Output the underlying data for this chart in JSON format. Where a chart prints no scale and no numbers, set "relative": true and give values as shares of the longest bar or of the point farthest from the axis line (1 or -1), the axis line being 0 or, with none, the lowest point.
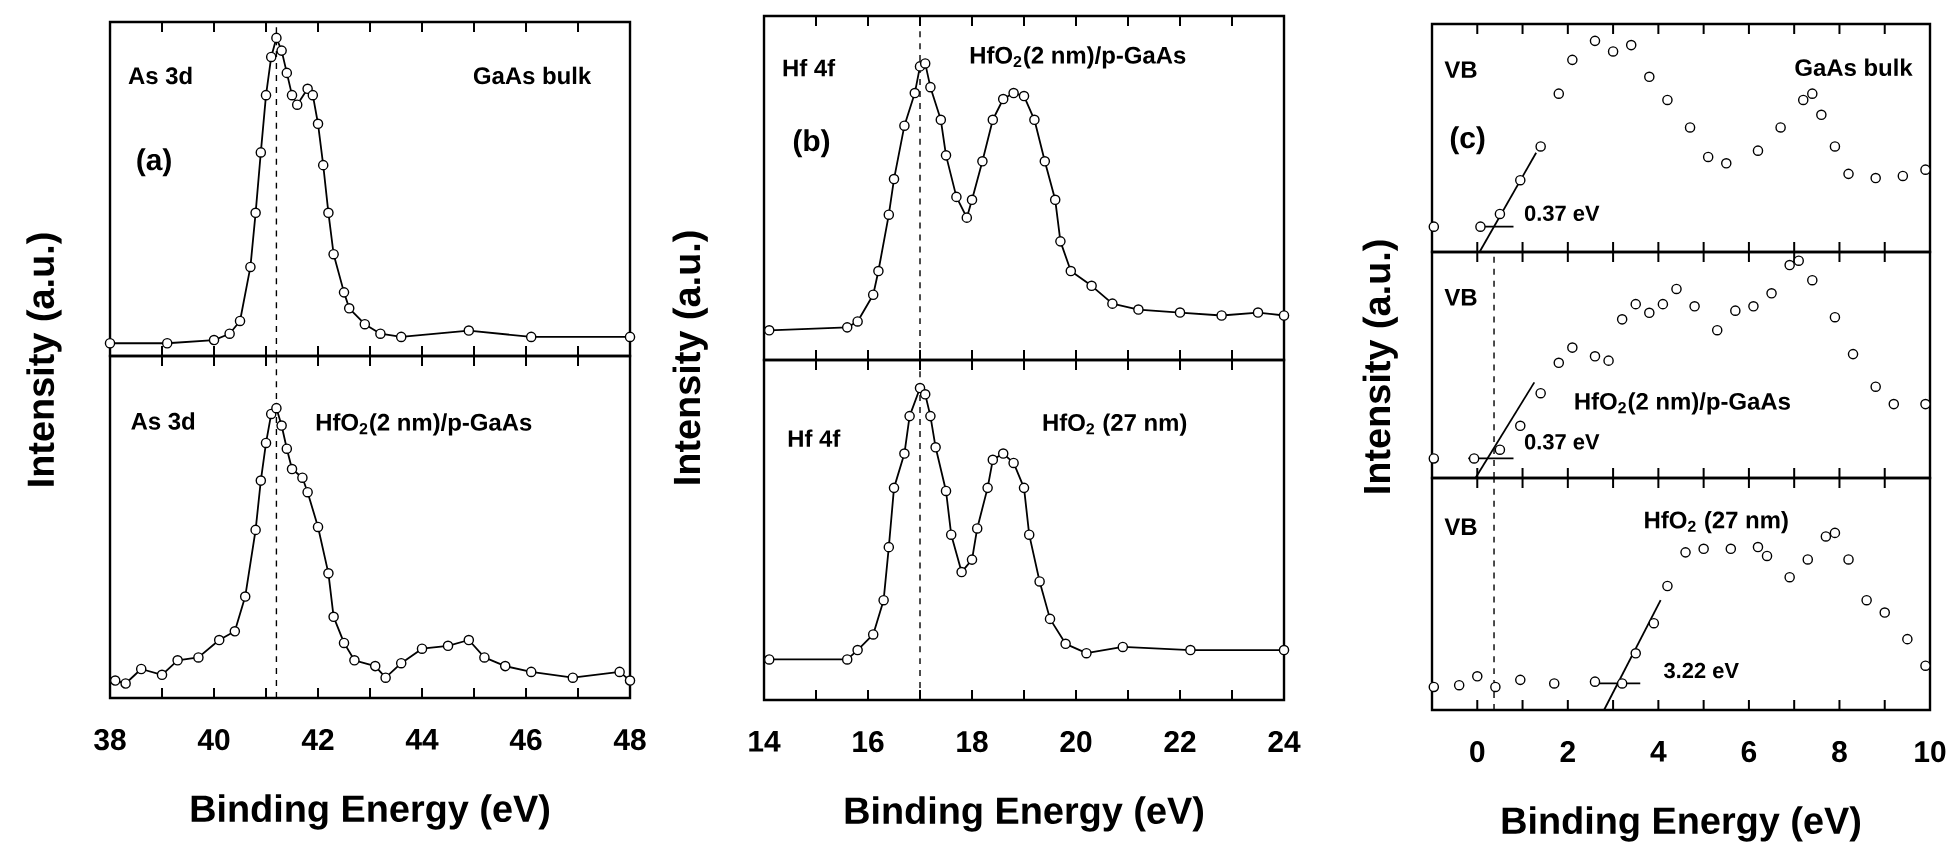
{
  "chart_data": [
    {
      "type": "line",
      "relative": true,
      "marker": "circle",
      "xlim": [
        38,
        48
      ],
      "xticks": [
        38,
        40,
        42,
        44,
        46,
        48
      ],
      "tick_labels": false,
      "ylabel": "Intensity (a.u.)",
      "annotations": [
        "As 3d",
        "GaAs bulk",
        "(a)"
      ],
      "ref_lines": [
        {
          "axis": "x",
          "value": 41.2,
          "line_style": "dashed",
          "color": "#000000"
        }
      ],
      "series": [
        {
          "type": "line",
          "color": "#000000",
          "x": [
            38.0,
            39.1,
            40.0,
            40.3,
            40.5,
            40.7,
            40.8,
            40.9,
            41.0,
            41.1,
            41.2,
            41.3,
            41.4,
            41.5,
            41.6,
            41.8,
            41.9,
            42.0,
            42.1,
            42.2,
            42.3,
            42.5,
            42.6,
            42.9,
            43.2,
            43.6,
            44.9,
            46.1,
            48.0
          ],
          "values": [
            0.04,
            0.04,
            0.05,
            0.07,
            0.11,
            0.28,
            0.45,
            0.64,
            0.82,
            0.94,
            1.0,
            0.96,
            0.89,
            0.82,
            0.79,
            0.84,
            0.82,
            0.73,
            0.6,
            0.45,
            0.32,
            0.2,
            0.15,
            0.1,
            0.07,
            0.06,
            0.08,
            0.06,
            0.06
          ]
        }
      ]
    },
    {
      "type": "line",
      "relative": true,
      "marker": "circle",
      "xlim": [
        38,
        48
      ],
      "xticks": [
        38,
        40,
        42,
        44,
        46,
        48
      ],
      "tick_labels": "x",
      "xlabel": "Binding Energy (eV)",
      "annotations": [
        "As 3d",
        "HfO$_{2}$(2 nm)/p-GaAs"
      ],
      "ref_lines": [
        {
          "axis": "x",
          "value": 41.2,
          "line_style": "dashed",
          "color": "#000000"
        }
      ],
      "series": [
        {
          "type": "line",
          "color": "#000000",
          "x": [
            38.1,
            38.3,
            38.6,
            39.0,
            39.3,
            39.7,
            40.1,
            40.4,
            40.6,
            40.8,
            40.9,
            41.0,
            41.1,
            41.2,
            41.3,
            41.4,
            41.5,
            41.7,
            41.8,
            42.0,
            42.2,
            42.3,
            42.5,
            42.7,
            43.1,
            43.3,
            43.6,
            44.0,
            44.5,
            44.9,
            45.2,
            45.6,
            46.1,
            46.9,
            47.8,
            48.0
          ],
          "values": [
            0.06,
            0.05,
            0.1,
            0.08,
            0.13,
            0.14,
            0.2,
            0.23,
            0.35,
            0.58,
            0.75,
            0.88,
            0.98,
            1.0,
            0.94,
            0.86,
            0.79,
            0.76,
            0.71,
            0.59,
            0.43,
            0.28,
            0.19,
            0.13,
            0.11,
            0.07,
            0.12,
            0.17,
            0.18,
            0.2,
            0.14,
            0.11,
            0.09,
            0.07,
            0.09,
            0.06
          ]
        }
      ]
    },
    {
      "type": "line",
      "relative": true,
      "marker": "circle",
      "xlim": [
        14,
        24
      ],
      "xticks": [
        14,
        16,
        18,
        20,
        22,
        24
      ],
      "tick_labels": false,
      "ylabel": "Intensity (a.u.)",
      "annotations": [
        "Hf 4f",
        "HfO$_{2}$(2 nm)/p-GaAs",
        "(b)"
      ],
      "ref_lines": [
        {
          "axis": "x",
          "value": 17.0,
          "line_style": "dashed",
          "color": "#000000"
        }
      ],
      "series": [
        {
          "type": "line",
          "color": "#000000",
          "x": [
            14.1,
            15.6,
            15.8,
            16.1,
            16.2,
            16.4,
            16.5,
            16.7,
            16.9,
            17.0,
            17.1,
            17.2,
            17.4,
            17.5,
            17.7,
            17.9,
            18.0,
            18.2,
            18.4,
            18.6,
            18.8,
            19.0,
            19.2,
            19.4,
            19.6,
            19.7,
            19.9,
            20.3,
            20.7,
            21.2,
            22.0,
            22.8,
            23.5,
            24.0
          ],
          "values": [
            0.1,
            0.11,
            0.13,
            0.22,
            0.3,
            0.49,
            0.61,
            0.79,
            0.9,
            0.99,
            1.0,
            0.92,
            0.81,
            0.69,
            0.55,
            0.48,
            0.54,
            0.67,
            0.81,
            0.88,
            0.9,
            0.89,
            0.81,
            0.67,
            0.54,
            0.4,
            0.3,
            0.25,
            0.19,
            0.17,
            0.16,
            0.15,
            0.16,
            0.15
          ]
        }
      ]
    },
    {
      "type": "line",
      "relative": true,
      "marker": "circle",
      "xlim": [
        14,
        24
      ],
      "xticks": [
        14,
        16,
        18,
        20,
        22,
        24
      ],
      "tick_labels": "x",
      "xlabel": "Binding Energy (eV)",
      "annotations": [
        "Hf 4f",
        "HfO$_{2}$ (27 nm)"
      ],
      "ref_lines": [
        {
          "axis": "x",
          "value": 17.0,
          "line_style": "dashed",
          "color": "#000000"
        }
      ],
      "series": [
        {
          "type": "line",
          "color": "#000000",
          "x": [
            14.1,
            15.6,
            15.8,
            16.1,
            16.3,
            16.4,
            16.5,
            16.7,
            16.8,
            17.0,
            17.1,
            17.2,
            17.3,
            17.5,
            17.6,
            17.8,
            18.0,
            18.1,
            18.3,
            18.4,
            18.6,
            18.8,
            19.0,
            19.1,
            19.3,
            19.5,
            19.8,
            20.2,
            20.9,
            22.2,
            24.0
          ],
          "values": [
            0.13,
            0.13,
            0.16,
            0.21,
            0.32,
            0.49,
            0.68,
            0.79,
            0.91,
            1.0,
            0.98,
            0.91,
            0.81,
            0.67,
            0.53,
            0.41,
            0.45,
            0.55,
            0.68,
            0.77,
            0.79,
            0.76,
            0.68,
            0.53,
            0.38,
            0.26,
            0.18,
            0.15,
            0.17,
            0.16,
            0.16
          ]
        }
      ]
    },
    {
      "type": "line",
      "relative": true,
      "marker": "circle",
      "xlim": [
        -1,
        10
      ],
      "xticks": [
        0,
        2,
        4,
        6,
        8,
        10
      ],
      "tick_labels": false,
      "ylabel": "Intensity (a.u.)",
      "annotations": [
        "VB",
        "GaAs bulk",
        "(c)",
        "0.37 eV"
      ],
      "series": [
        {
          "type": "scatter",
          "color": "#000000",
          "x": [
            -0.96,
            0.07,
            0.5,
            0.95,
            1.4,
            1.8,
            2.1,
            2.6,
            3.0,
            3.4,
            3.8,
            4.2,
            4.7,
            5.1,
            5.5,
            6.2,
            6.7,
            7.2,
            7.4,
            7.6,
            7.9,
            8.2,
            8.8,
            9.4,
            9.9
          ],
          "values": [
            0.12,
            0.12,
            0.18,
            0.34,
            0.5,
            0.75,
            0.91,
            1.0,
            0.95,
            0.98,
            0.83,
            0.72,
            0.59,
            0.45,
            0.42,
            0.48,
            0.59,
            0.72,
            0.75,
            0.65,
            0.5,
            0.37,
            0.35,
            0.36,
            0.39
          ]
        },
        {
          "type": "line",
          "marker": "none",
          "color": "#000000",
          "x": [
            0.05,
            1.3
          ],
          "values": [
            0.0,
            0.47
          ]
        },
        {
          "type": "line",
          "marker": "none",
          "color": "#000000",
          "x": [
            0.0,
            0.8
          ],
          "values": [
            0.12,
            0.12
          ]
        }
      ]
    },
    {
      "type": "line",
      "relative": true,
      "marker": "circle",
      "xlim": [
        -1,
        10
      ],
      "xticks": [
        0,
        2,
        4,
        6,
        8,
        10
      ],
      "tick_labels": false,
      "annotations": [
        "VB",
        "HfO$_{2}$(2 nm)/p-GaAs",
        "0.37 eV"
      ],
      "ref_lines": [
        {
          "axis": "x",
          "value": 0.37,
          "line_style": "dashed",
          "color": "#000000"
        }
      ],
      "series": [
        {
          "type": "scatter",
          "color": "#000000",
          "x": [
            -0.96,
            -0.07,
            0.5,
            0.95,
            1.4,
            1.8,
            2.1,
            2.6,
            2.9,
            3.2,
            3.5,
            3.8,
            4.1,
            4.4,
            4.8,
            5.3,
            5.7,
            6.1,
            6.5,
            6.9,
            7.1,
            7.4,
            7.9,
            8.3,
            8.8,
            9.2,
            9.9
          ],
          "values": [
            0.09,
            0.09,
            0.13,
            0.24,
            0.39,
            0.53,
            0.6,
            0.56,
            0.54,
            0.73,
            0.8,
            0.76,
            0.8,
            0.87,
            0.79,
            0.68,
            0.77,
            0.79,
            0.85,
            0.98,
            1.0,
            0.91,
            0.74,
            0.57,
            0.42,
            0.34,
            0.34
          ]
        },
        {
          "type": "line",
          "marker": "none",
          "color": "#000000",
          "x": [
            -0.04,
            1.26
          ],
          "values": [
            0.0,
            0.44
          ]
        },
        {
          "type": "line",
          "marker": "none",
          "color": "#000000",
          "x": [
            -0.2,
            0.8
          ],
          "values": [
            0.09,
            0.09
          ]
        }
      ]
    },
    {
      "type": "line",
      "relative": true,
      "marker": "circle",
      "xlim": [
        -1,
        10
      ],
      "xticks": [
        0,
        2,
        4,
        6,
        8,
        10
      ],
      "tick_labels": "x",
      "xlabel": "Binding Energy (eV)",
      "annotations": [
        "VB",
        "HfO$_{2}$ (27 nm)",
        "3.22 eV"
      ],
      "ref_lines": [
        {
          "axis": "x",
          "value": 0.37,
          "line_style": "dashed",
          "color": "#000000"
        }
      ],
      "series": [
        {
          "type": "scatter",
          "color": "#000000",
          "x": [
            -0.96,
            -0.4,
            0.0,
            0.4,
            0.95,
            1.7,
            2.6,
            3.2,
            3.5,
            3.9,
            4.2,
            4.6,
            5.0,
            5.6,
            6.2,
            6.4,
            6.9,
            7.3,
            7.7,
            7.9,
            8.2,
            8.6,
            9.0,
            9.5,
            9.9
          ],
          "values": [
            0.13,
            0.14,
            0.19,
            0.13,
            0.17,
            0.15,
            0.16,
            0.15,
            0.32,
            0.49,
            0.7,
            0.89,
            0.91,
            0.91,
            0.92,
            0.87,
            0.75,
            0.85,
            0.98,
            1.0,
            0.85,
            0.62,
            0.55,
            0.4,
            0.25
          ]
        },
        {
          "type": "line",
          "marker": "none",
          "color": "#000000",
          "x": [
            2.8,
            4.05
          ],
          "values": [
            0.0,
            0.62
          ]
        },
        {
          "type": "line",
          "marker": "none",
          "color": "#000000",
          "x": [
            2.6,
            3.6
          ],
          "values": [
            0.15,
            0.15
          ]
        }
      ]
    }
  ]
}
